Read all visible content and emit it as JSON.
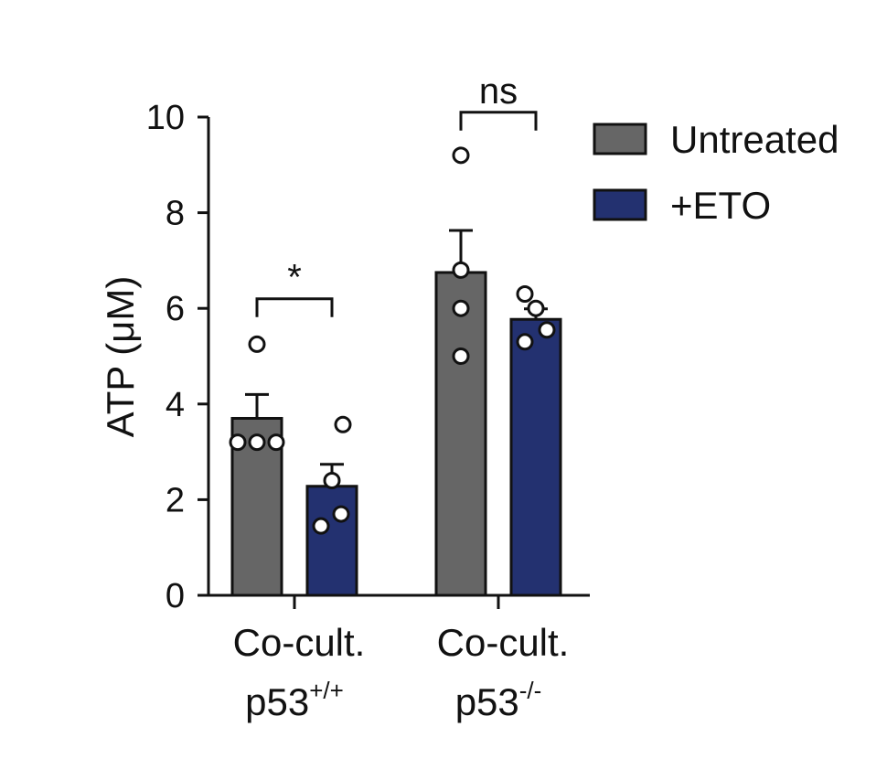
{
  "chart_data": {
    "type": "bar",
    "ylabel": "ATP (μM)",
    "ylim": [
      0,
      10
    ],
    "yticks": [
      0,
      2,
      4,
      6,
      8,
      10
    ],
    "legend_placement": "top-right",
    "categories": [
      {
        "main": "Co-cult.",
        "sub_base": "p53",
        "sub_sup": "+/+"
      },
      {
        "main": "Co-cult.",
        "sub_base": "p53",
        "sub_sup": "-/-"
      }
    ],
    "series": [
      {
        "name": "Untreated",
        "color": "#666666",
        "values": [
          3.7,
          6.75
        ],
        "sem": [
          0.5,
          0.88
        ],
        "points": [
          [
            3.2,
            3.2,
            3.2,
            5.25
          ],
          [
            5.0,
            6.0,
            6.8,
            9.2
          ]
        ]
      },
      {
        "name": "+ETO",
        "color": "#233170",
        "values": [
          2.28,
          5.77
        ],
        "sem": [
          0.46,
          0.22
        ],
        "points": [
          [
            1.45,
            1.7,
            2.4,
            3.57
          ],
          [
            5.3,
            5.55,
            6.0,
            6.3
          ]
        ]
      }
    ],
    "comparisons": [
      {
        "category": 0,
        "label": "*",
        "y": 6.2
      },
      {
        "category": 1,
        "label": "ns",
        "y": 10.1
      }
    ]
  }
}
